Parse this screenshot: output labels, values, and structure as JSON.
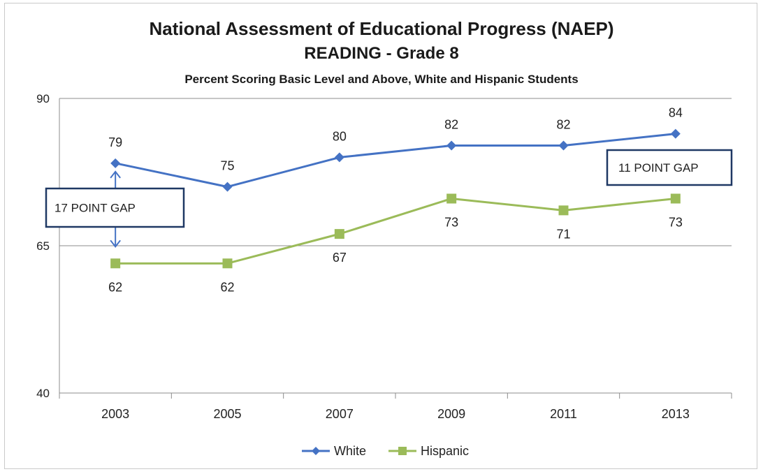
{
  "chart_data": {
    "type": "line",
    "title": "National Assessment of Educational Progress (NAEP)",
    "subtitle": "READING - Grade 8",
    "subtitle2": "Percent Scoring Basic Level and Above, White and Hispanic Students",
    "categories": [
      "2003",
      "2005",
      "2007",
      "2009",
      "2011",
      "2013"
    ],
    "series": [
      {
        "name": "White",
        "values": [
          79,
          75,
          80,
          82,
          82,
          84
        ],
        "color": "#4472c4",
        "marker": "diamond"
      },
      {
        "name": "Hispanic",
        "values": [
          62,
          62,
          67,
          73,
          71,
          73
        ],
        "color": "#9bbb59",
        "marker": "square"
      }
    ],
    "y_ticks": [
      "90",
      "65",
      "40"
    ],
    "ylim": [
      40,
      90
    ],
    "grid": true,
    "legend_position": "bottom",
    "annotations": [
      {
        "text": "17 POINT GAP"
      },
      {
        "text": "11 POINT GAP"
      }
    ]
  }
}
